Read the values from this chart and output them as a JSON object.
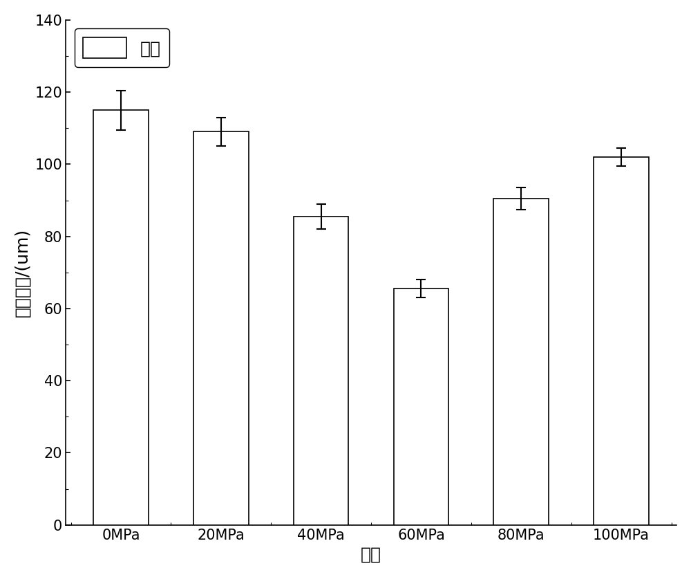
{
  "categories": [
    "0MPa",
    "20MPa",
    "40MPa",
    "60MPa",
    "80MPa",
    "100MPa"
  ],
  "values": [
    115.0,
    109.0,
    85.5,
    65.5,
    90.5,
    102.0
  ],
  "errors": [
    5.5,
    4.0,
    3.5,
    2.5,
    3.0,
    2.5
  ],
  "bar_color": "#ffffff",
  "bar_edgecolor": "#000000",
  "xlabel": "组别",
  "ylabel": "平均粒径/(um)",
  "ylim": [
    0,
    140
  ],
  "yticks": [
    0,
    20,
    40,
    60,
    80,
    100,
    120,
    140
  ],
  "legend_label": "粒径",
  "background_color": "#ffffff",
  "bar_width": 0.55,
  "axis_fontsize": 18,
  "tick_fontsize": 15,
  "legend_fontsize": 18,
  "errorbar_capsize": 5,
  "errorbar_linewidth": 1.5,
  "errorbar_color": "#000000"
}
